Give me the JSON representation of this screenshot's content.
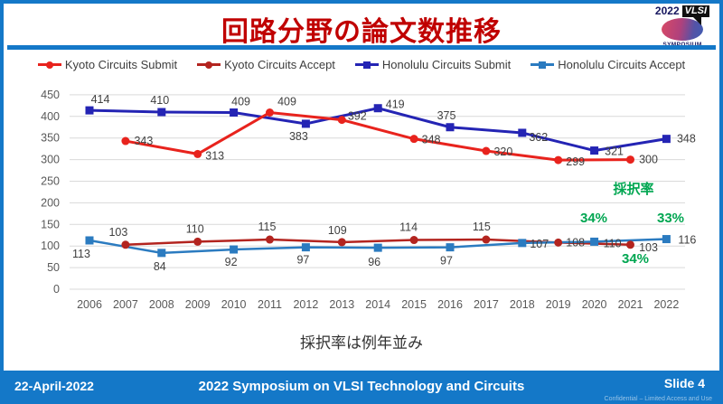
{
  "header": {
    "title": "回路分野の論文数推移"
  },
  "logo": {
    "year": "2022",
    "brand": "VLSI",
    "subtitle": "SYMPOSIUM"
  },
  "caption": {
    "text": "採択率は例年並み"
  },
  "footer": {
    "date": "22-April-2022",
    "title": "2022 Symposium on VLSI Technology and Circuits",
    "slide": "Slide 4",
    "confidential": "Confidential – Limited Access and Use"
  },
  "chart_data": {
    "type": "line",
    "title": "回路分野の論文数推移",
    "x": [
      2006,
      2007,
      2008,
      2009,
      2010,
      2011,
      2012,
      2013,
      2014,
      2015,
      2016,
      2017,
      2018,
      2019,
      2020,
      2021,
      2022
    ],
    "ylim": [
      0,
      450
    ],
    "ytick_step": 50,
    "grid": true,
    "legend_position": "top",
    "colors": {
      "grid": "#d9d9d9",
      "tick": "#595959",
      "data_label": "#3f3f3f",
      "accent_green": "#00a651",
      "title": "#c00000",
      "footer_blue": "#1478c8"
    },
    "plot": {
      "x0": 95,
      "xstep": 39.9,
      "year0": 2006,
      "ybase": 265,
      "yscale": 0.478,
      "grid_x0": 73,
      "grid_x1": 754,
      "ytick_x": 62,
      "xlabel_y": 286,
      "draw_order": [
        2,
        0,
        1,
        3
      ]
    },
    "series": [
      {
        "id": "kyoto-submit",
        "name": "Kyoto Circuits Submit",
        "color": "#e8231d",
        "marker": "circle",
        "width": 3,
        "points": [
          {
            "x": 2007,
            "y": 343,
            "dx": 20,
            "dy": 0
          },
          {
            "x": 2009,
            "y": 313,
            "dx": 19,
            "dy": 2
          },
          {
            "x": 2011,
            "y": 409,
            "dx": 19,
            "dy": -12
          },
          {
            "x": 2013,
            "y": 392,
            "dx": 17,
            "dy": -4
          },
          {
            "x": 2015,
            "y": 348,
            "dx": 19,
            "dy": 1
          },
          {
            "x": 2017,
            "y": 320,
            "dx": 19,
            "dy": 1
          },
          {
            "x": 2019,
            "y": 299,
            "dx": 19,
            "dy": 2
          },
          {
            "x": 2021,
            "y": 300,
            "dx": 20,
            "dy": 0
          }
        ]
      },
      {
        "id": "kyoto-accept",
        "name": "Kyoto Circuits Accept",
        "color": "#b3241f",
        "marker": "circle",
        "width": 2.5,
        "points": [
          {
            "x": 2007,
            "y": 103,
            "dx": -8,
            "dy": -14
          },
          {
            "x": 2009,
            "y": 110,
            "dx": -3,
            "dy": -14
          },
          {
            "x": 2011,
            "y": 115,
            "dx": -3,
            "dy": -14
          },
          {
            "x": 2013,
            "y": 109,
            "dx": -5,
            "dy": -13
          },
          {
            "x": 2015,
            "y": 114,
            "dx": -6,
            "dy": -14
          },
          {
            "x": 2017,
            "y": 115,
            "dx": -5,
            "dy": -14
          },
          {
            "x": 2019,
            "y": 108,
            "dx": 19,
            "dy": 0
          },
          {
            "x": 2021,
            "y": 103,
            "dx": 20,
            "dy": 3
          }
        ]
      },
      {
        "id": "honolulu-submit",
        "name": "Honolulu Circuits Submit",
        "color": "#2424b4",
        "marker": "square",
        "width": 3,
        "points": [
          {
            "x": 2006,
            "y": 414,
            "dx": 12,
            "dy": -12
          },
          {
            "x": 2008,
            "y": 410,
            "dx": -2,
            "dy": -13
          },
          {
            "x": 2010,
            "y": 409,
            "dx": 8,
            "dy": -12
          },
          {
            "x": 2012,
            "y": 383,
            "dx": -8,
            "dy": 14
          },
          {
            "x": 2014,
            "y": 419,
            "dx": 19,
            "dy": -4
          },
          {
            "x": 2016,
            "y": 375,
            "dx": -4,
            "dy": -13
          },
          {
            "x": 2018,
            "y": 362,
            "dx": 18,
            "dy": 5
          },
          {
            "x": 2020,
            "y": 321,
            "dx": 22,
            "dy": 1
          },
          {
            "x": 2022,
            "y": 348,
            "dx": 22,
            "dy": 0
          }
        ]
      },
      {
        "id": "honolulu-accept",
        "name": "Honolulu Circuits Accept",
        "color": "#2b7bc0",
        "marker": "square",
        "width": 2.5,
        "points": [
          {
            "x": 2006,
            "y": 113,
            "dx": -9,
            "dy": 15
          },
          {
            "x": 2008,
            "y": 84,
            "dx": -2,
            "dy": 15
          },
          {
            "x": 2010,
            "y": 92,
            "dx": -3,
            "dy": 14
          },
          {
            "x": 2012,
            "y": 97,
            "dx": -3,
            "dy": 14
          },
          {
            "x": 2014,
            "y": 96,
            "dx": -4,
            "dy": 16
          },
          {
            "x": 2016,
            "y": 97,
            "dx": -4,
            "dy": 15
          },
          {
            "x": 2018,
            "y": 107,
            "dx": 19,
            "dy": 1
          },
          {
            "x": 2020,
            "y": 110,
            "dx": 20,
            "dy": 2
          },
          {
            "x": 2022,
            "y": 116,
            "dx": 23,
            "dy": 1
          }
        ]
      }
    ],
    "annotations": [
      {
        "text": "採択率",
        "x": 697,
        "y": 159
      },
      {
        "text": "34%",
        "x": 653,
        "y": 191
      },
      {
        "text": "33%",
        "x": 738,
        "y": 191
      },
      {
        "text": "34%",
        "x": 699,
        "y": 236
      }
    ]
  }
}
